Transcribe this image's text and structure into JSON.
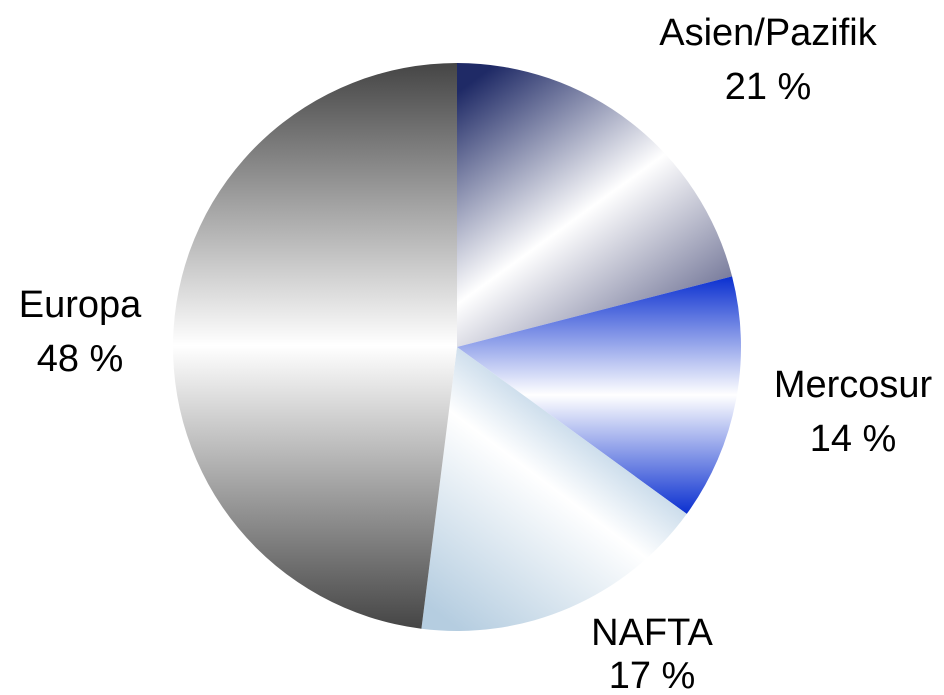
{
  "chart_data": {
    "type": "pie",
    "title": "",
    "start_angle_deg": 0,
    "direction": "clockwise",
    "slices": [
      {
        "name": "Asien/Pazifik",
        "value": 21,
        "value_label": "21 %",
        "colors": [
          "#1f2a66",
          "#ffffff",
          "#5a5e86"
        ]
      },
      {
        "name": "Mercosur",
        "value": 14,
        "value_label": "14 %",
        "colors": [
          "#0a2fd0",
          "#ffffff",
          "#0a2fd0"
        ]
      },
      {
        "name": "NAFTA",
        "value": 17,
        "value_label": "17 %",
        "colors": [
          "#6f9fc8",
          "#ffffff",
          "#b5cde0"
        ]
      },
      {
        "name": "Europa",
        "value": 48,
        "value_label": "48 %",
        "colors": [
          "#454545",
          "#ffffff",
          "#454545"
        ]
      }
    ]
  }
}
